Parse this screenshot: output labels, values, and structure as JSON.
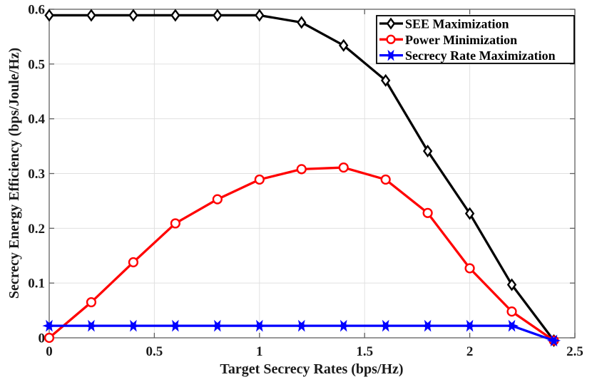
{
  "chart_data": {
    "type": "line",
    "title": "",
    "xlabel": "Target Secrecy Rates (bps/Hz)",
    "ylabel": "Secrecy Energy Efficiency (bps/Joule/Hz)",
    "xlim": [
      0,
      2.5
    ],
    "ylim": [
      0,
      0.6
    ],
    "grid": true,
    "legend_position": "top-right",
    "xticks": {
      "values": [
        0,
        0.5,
        1,
        1.5,
        2,
        2.5
      ],
      "labels": [
        "0",
        "0.5",
        "1",
        "1.5",
        "2",
        "2.5"
      ]
    },
    "yticks": {
      "values": [
        0,
        0.1,
        0.2,
        0.3,
        0.4,
        0.5,
        0.6
      ],
      "labels": [
        "0",
        "0.1",
        "0.2",
        "0.3",
        "0.4",
        "0.5",
        "0.6"
      ]
    },
    "x": [
      0,
      0.2,
      0.4,
      0.6,
      0.8,
      1.0,
      1.2,
      1.4,
      1.6,
      1.8,
      2.0,
      2.2,
      2.4
    ],
    "series": [
      {
        "name": "SEE Maximization",
        "color": "#000000",
        "marker": "diamond",
        "marker_fill": "#ffffff",
        "values": [
          0.589,
          0.589,
          0.589,
          0.589,
          0.589,
          0.589,
          0.576,
          0.534,
          0.47,
          0.341,
          0.227,
          0.097,
          -0.005
        ]
      },
      {
        "name": "Power Minimization",
        "color": "#ff0000",
        "marker": "circle",
        "marker_fill": "#ffffff",
        "values": [
          0.0,
          0.065,
          0.138,
          0.209,
          0.253,
          0.289,
          0.308,
          0.311,
          0.289,
          0.228,
          0.127,
          0.048,
          -0.005
        ]
      },
      {
        "name": "Secrecy Rate Maximization",
        "color": "#0000ff",
        "marker": "hexagram",
        "marker_fill": "#0000ff",
        "values": [
          0.022,
          0.022,
          0.022,
          0.022,
          0.022,
          0.022,
          0.022,
          0.022,
          0.022,
          0.022,
          0.022,
          0.022,
          -0.005
        ]
      }
    ],
    "colors": {
      "background": "#ffffff",
      "grid": "#e0e0e0",
      "axis": "#606060",
      "tick_label": "#1a1a1a",
      "legend_border": "#000000",
      "legend_background": "#ffffff"
    }
  }
}
